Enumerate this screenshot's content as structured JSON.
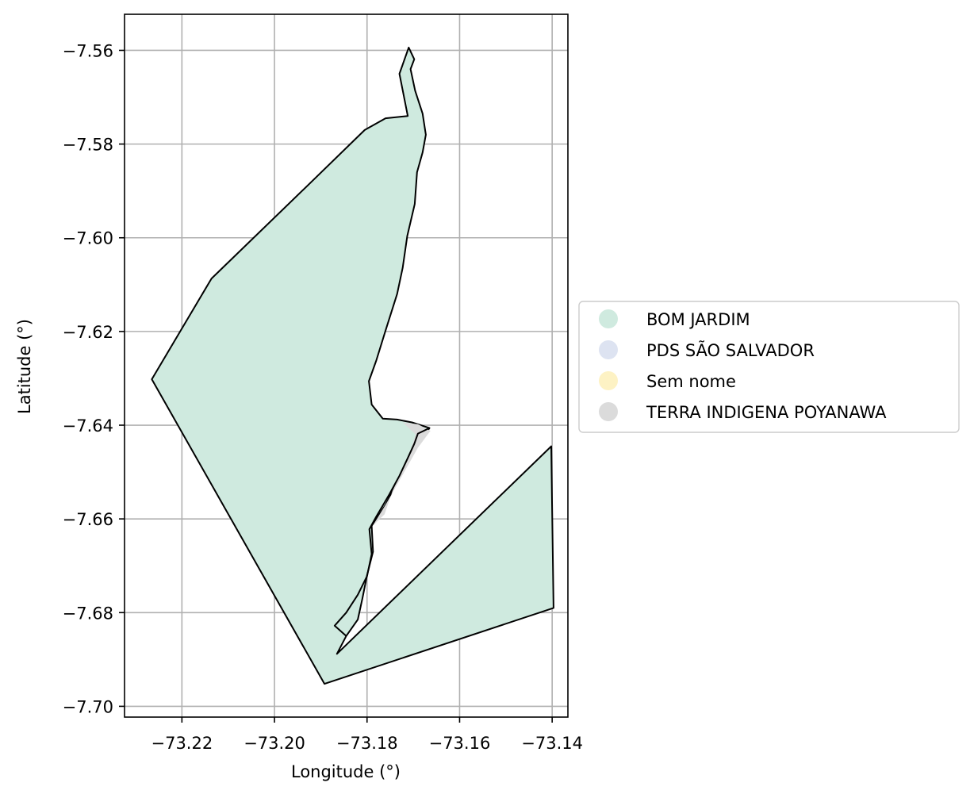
{
  "chart_data": {
    "type": "choropleth-map",
    "title": "",
    "xlabel": "Longitude (°)",
    "ylabel": "Latitude (°)",
    "xlim": [
      -73.2324,
      -73.1366
    ],
    "ylim": [
      -7.7023,
      -7.5523
    ],
    "xticks": [
      -73.22,
      -73.2,
      -73.18,
      -73.16,
      -73.14
    ],
    "yticks": [
      -7.56,
      -7.58,
      -7.6,
      -7.62,
      -7.64,
      -7.66,
      -7.68,
      -7.7
    ],
    "x_tick_labels": [
      "−73.22",
      "−73.20",
      "−73.18",
      "−73.16",
      "−73.14"
    ],
    "y_tick_labels": [
      "−7.56",
      "−7.58",
      "−7.60",
      "−7.62",
      "−7.64",
      "−7.66",
      "−7.68",
      "−7.70"
    ],
    "grid": true,
    "legend_position": "outside-right",
    "legend": [
      {
        "label": "BOM JARDIM",
        "color": "#cfeadf"
      },
      {
        "label": "PDS SÃO SALVADOR",
        "color": "#dde3f1"
      },
      {
        "label": "Sem nome",
        "color": "#fdf2c4"
      },
      {
        "label": "TERRA INDIGENA POYANAWA",
        "color": "#dbdbdb"
      }
    ],
    "regions": [
      {
        "name": "BOM JARDIM",
        "color": "#cfeadf",
        "outline": true,
        "coordinates": [
          [
            -73.171,
            -7.5594
          ],
          [
            -73.1698,
            -7.5619
          ],
          [
            -73.1706,
            -7.564
          ],
          [
            -73.1696,
            -7.5686
          ],
          [
            -73.168,
            -7.5735
          ],
          [
            -73.1673,
            -7.578
          ],
          [
            -73.168,
            -7.5818
          ],
          [
            -73.1692,
            -7.586
          ],
          [
            -73.1697,
            -7.5928
          ],
          [
            -73.1713,
            -7.5996
          ],
          [
            -73.1723,
            -7.6064
          ],
          [
            -73.1735,
            -7.612
          ],
          [
            -73.176,
            -7.6198
          ],
          [
            -73.178,
            -7.6262
          ],
          [
            -73.1796,
            -7.6306
          ],
          [
            -73.179,
            -7.6356
          ],
          [
            -73.1766,
            -7.6386
          ],
          [
            -73.1735,
            -7.6388
          ],
          [
            -73.1703,
            -7.6394
          ],
          [
            -73.1665,
            -7.6406
          ],
          [
            -73.1695,
            -7.645
          ],
          [
            -73.1735,
            -7.652
          ],
          [
            -73.176,
            -7.657
          ],
          [
            -73.179,
            -7.6615
          ],
          [
            -73.1787,
            -7.667
          ],
          [
            -73.18,
            -7.672
          ],
          [
            -73.181,
            -7.677
          ],
          [
            -73.182,
            -7.6815
          ],
          [
            -73.1845,
            -7.685
          ],
          [
            -73.1865,
            -7.6888
          ],
          [
            -73.1402,
            -7.6445
          ],
          [
            -73.1397,
            -7.679
          ],
          [
            -73.1892,
            -7.6952
          ],
          [
            -73.2265,
            -7.6302
          ],
          [
            -73.2136,
            -7.6087
          ],
          [
            -73.193,
            -7.589
          ],
          [
            -73.1805,
            -7.577
          ],
          [
            -73.176,
            -7.5745
          ],
          [
            -73.1712,
            -7.574
          ],
          [
            -73.173,
            -7.565
          ]
        ]
      },
      {
        "name": "TERRA INDIGENA POYANAWA",
        "color": "#dbdbdb",
        "outline": false,
        "coordinates": [
          [
            -73.1723,
            -7.6394
          ],
          [
            -73.169,
            -7.6398
          ],
          [
            -73.1663,
            -7.6412
          ],
          [
            -73.169,
            -7.6448
          ],
          [
            -73.173,
            -7.6518
          ],
          [
            -73.176,
            -7.657
          ],
          [
            -73.1788,
            -7.6615
          ],
          [
            -73.1762,
            -7.659
          ],
          [
            -73.1745,
            -7.654
          ],
          [
            -73.1722,
            -7.6492
          ],
          [
            -73.1705,
            -7.645
          ],
          [
            -73.1695,
            -7.642
          ]
        ]
      }
    ],
    "lines": [
      {
        "name": "TERRA INDIGENA POYANAWA",
        "coordinates": [
          [
            -73.1845,
            -7.685
          ],
          [
            -73.187,
            -7.6828
          ],
          [
            -73.1845,
            -7.68
          ],
          [
            -73.182,
            -7.6762
          ],
          [
            -73.18,
            -7.6722
          ],
          [
            -73.179,
            -7.6675
          ],
          [
            -73.1795,
            -7.6622
          ],
          [
            -73.178,
            -7.6595
          ],
          [
            -73.1752,
            -7.6548
          ],
          [
            -73.173,
            -7.6508
          ],
          [
            -73.1712,
            -7.647
          ],
          [
            -73.1698,
            -7.644
          ],
          [
            -73.169,
            -7.6418
          ],
          [
            -73.1665,
            -7.6406
          ]
        ]
      }
    ]
  }
}
